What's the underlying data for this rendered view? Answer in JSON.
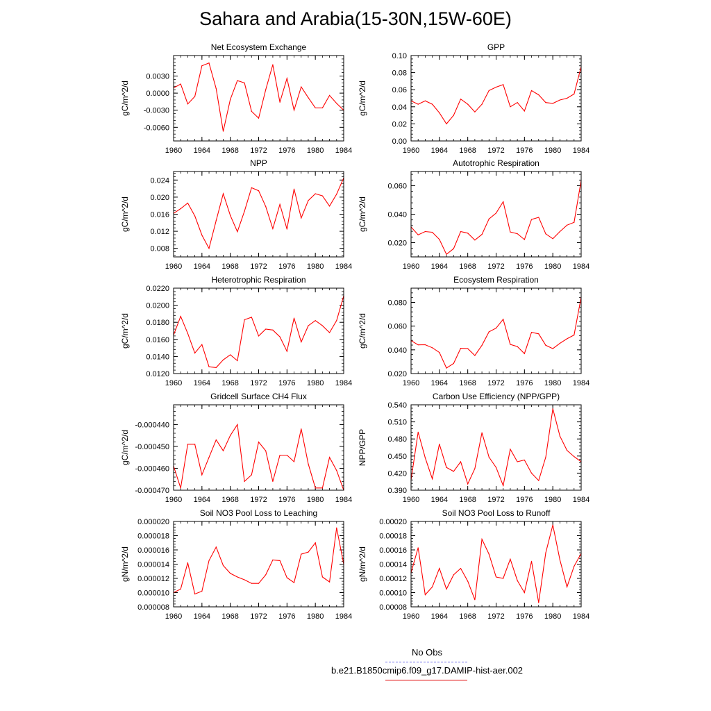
{
  "title": "Sahara and Arabia(15-30N,15W-60E)",
  "colors": {
    "series": "#ff0000",
    "obs": "#6a6ae8",
    "axis": "#000000"
  },
  "legend": {
    "obs_label": "No Obs",
    "model_label": "b.e21.B1850cmip6.f09_g17.DAMIP-hist-aer.002"
  },
  "chart_data": [
    {
      "type": "line",
      "title": "Net Ecosystem Exchange",
      "ylabel": "gC/m^2/d",
      "xlim": [
        1960,
        1984
      ],
      "xticks": [
        1960,
        1964,
        1968,
        1972,
        1976,
        1980,
        1984
      ],
      "ylim": [
        -0.0084,
        0.0066
      ],
      "yticks": [
        -0.006,
        -0.003,
        0.0,
        0.003
      ],
      "ytick_labels": [
        "-0.0060",
        "-0.0030",
        "0.0000",
        "0.0030"
      ],
      "x": [
        1960,
        1961,
        1962,
        1963,
        1964,
        1965,
        1966,
        1967,
        1968,
        1969,
        1970,
        1971,
        1972,
        1973,
        1974,
        1975,
        1976,
        1977,
        1978,
        1979,
        1980,
        1981,
        1982,
        1983,
        1984
      ],
      "values": [
        0.0009,
        0.0016,
        -0.0019,
        -0.0006,
        0.0048,
        0.0053,
        0.0008,
        -0.0067,
        -0.0011,
        0.0022,
        0.0018,
        -0.0032,
        -0.0044,
        0.0006,
        0.005,
        -0.0016,
        0.0026,
        -0.003,
        0.0011,
        -0.0008,
        -0.0026,
        -0.0026,
        -0.0004,
        -0.0018,
        -0.003
      ]
    },
    {
      "type": "line",
      "title": "GPP",
      "ylabel": "gC/m^2/d",
      "xlim": [
        1960,
        1984
      ],
      "xticks": [
        1960,
        1964,
        1968,
        1972,
        1976,
        1980,
        1984
      ],
      "ylim": [
        0.0,
        0.1
      ],
      "yticks": [
        0.0,
        0.02,
        0.04,
        0.06,
        0.08,
        0.1
      ],
      "ytick_labels": [
        "0.00",
        "0.02",
        "0.04",
        "0.06",
        "0.08",
        "0.10"
      ],
      "x": [
        1960,
        1961,
        1962,
        1963,
        1964,
        1965,
        1966,
        1967,
        1968,
        1969,
        1970,
        1971,
        1972,
        1973,
        1974,
        1975,
        1976,
        1977,
        1978,
        1979,
        1980,
        1981,
        1982,
        1983,
        1984
      ],
      "values": [
        0.047,
        0.043,
        0.047,
        0.043,
        0.033,
        0.02,
        0.03,
        0.049,
        0.043,
        0.034,
        0.043,
        0.059,
        0.063,
        0.066,
        0.04,
        0.045,
        0.035,
        0.059,
        0.054,
        0.045,
        0.044,
        0.048,
        0.05,
        0.055,
        0.087
      ]
    },
    {
      "type": "line",
      "title": "NPP",
      "ylabel": "gC/m^2/d",
      "xlim": [
        1960,
        1984
      ],
      "xticks": [
        1960,
        1964,
        1968,
        1972,
        1976,
        1980,
        1984
      ],
      "ylim": [
        0.006,
        0.026
      ],
      "yticks": [
        0.008,
        0.012,
        0.016,
        0.02,
        0.024
      ],
      "ytick_labels": [
        "0.008",
        "0.012",
        "0.016",
        "0.020",
        "0.024"
      ],
      "x": [
        1960,
        1961,
        1962,
        1963,
        1964,
        1965,
        1966,
        1967,
        1968,
        1969,
        1970,
        1971,
        1972,
        1973,
        1974,
        1975,
        1976,
        1977,
        1978,
        1979,
        1980,
        1981,
        1982,
        1983,
        1984
      ],
      "values": [
        0.0162,
        0.0173,
        0.0186,
        0.0156,
        0.0111,
        0.008,
        0.0145,
        0.0208,
        0.0157,
        0.0119,
        0.0167,
        0.0222,
        0.0215,
        0.0178,
        0.0126,
        0.0183,
        0.0125,
        0.0219,
        0.0151,
        0.0192,
        0.0208,
        0.0203,
        0.0179,
        0.0207,
        0.0245
      ]
    },
    {
      "type": "line",
      "title": "Autotrophic Respiration",
      "ylabel": "gC/m^2/d",
      "xlim": [
        1960,
        1984
      ],
      "xticks": [
        1960,
        1964,
        1968,
        1972,
        1976,
        1980,
        1984
      ],
      "ylim": [
        0.01,
        0.07
      ],
      "yticks": [
        0.02,
        0.04,
        0.06
      ],
      "ytick_labels": [
        "0.020",
        "0.040",
        "0.060"
      ],
      "x": [
        1960,
        1961,
        1962,
        1963,
        1964,
        1965,
        1966,
        1967,
        1968,
        1969,
        1970,
        1971,
        1972,
        1973,
        1974,
        1975,
        1976,
        1977,
        1978,
        1979,
        1980,
        1981,
        1982,
        1983,
        1984
      ],
      "values": [
        0.031,
        0.0255,
        0.0278,
        0.0273,
        0.0223,
        0.0118,
        0.0158,
        0.0278,
        0.0267,
        0.0218,
        0.0258,
        0.0367,
        0.0408,
        0.0488,
        0.0275,
        0.0263,
        0.0222,
        0.0363,
        0.0378,
        0.0262,
        0.0228,
        0.0278,
        0.0323,
        0.0343,
        0.0638
      ]
    },
    {
      "type": "line",
      "title": "Heterotrophic Respiration",
      "ylabel": "gC/m^2/d",
      "xlim": [
        1960,
        1984
      ],
      "xticks": [
        1960,
        1964,
        1968,
        1972,
        1976,
        1980,
        1984
      ],
      "ylim": [
        0.012,
        0.022
      ],
      "yticks": [
        0.012,
        0.014,
        0.016,
        0.018,
        0.02,
        0.022
      ],
      "ytick_labels": [
        "0.0120",
        "0.0140",
        "0.0160",
        "0.0180",
        "0.0200",
        "0.0220"
      ],
      "x": [
        1960,
        1961,
        1962,
        1963,
        1964,
        1965,
        1966,
        1967,
        1968,
        1969,
        1970,
        1971,
        1972,
        1973,
        1974,
        1975,
        1976,
        1977,
        1978,
        1979,
        1980,
        1981,
        1982,
        1983,
        1984
      ],
      "values": [
        0.0165,
        0.0187,
        0.0167,
        0.0144,
        0.0154,
        0.0128,
        0.0127,
        0.0136,
        0.0142,
        0.0135,
        0.0183,
        0.0186,
        0.0164,
        0.0172,
        0.0171,
        0.0163,
        0.0146,
        0.0185,
        0.0157,
        0.0176,
        0.0182,
        0.0176,
        0.0168,
        0.0182,
        0.0211
      ]
    },
    {
      "type": "line",
      "title": "Ecosystem Respiration",
      "ylabel": "gC/m^2/d",
      "xlim": [
        1960,
        1984
      ],
      "xticks": [
        1960,
        1964,
        1968,
        1972,
        1976,
        1980,
        1984
      ],
      "ylim": [
        0.02,
        0.092
      ],
      "yticks": [
        0.02,
        0.04,
        0.06,
        0.08
      ],
      "ytick_labels": [
        "0.020",
        "0.040",
        "0.060",
        "0.080"
      ],
      "x": [
        1960,
        1961,
        1962,
        1963,
        1964,
        1965,
        1966,
        1967,
        1968,
        1969,
        1970,
        1971,
        1972,
        1973,
        1974,
        1975,
        1976,
        1977,
        1978,
        1979,
        1980,
        1981,
        1982,
        1983,
        1984
      ],
      "values": [
        0.0478,
        0.0442,
        0.0443,
        0.0418,
        0.0378,
        0.0246,
        0.0285,
        0.0413,
        0.041,
        0.0352,
        0.0438,
        0.0552,
        0.0583,
        0.0658,
        0.0446,
        0.0428,
        0.0368,
        0.0548,
        0.0535,
        0.0438,
        0.041,
        0.0455,
        0.0493,
        0.0525,
        0.0845
      ]
    },
    {
      "type": "line",
      "title": "Gridcell Surface CH4 Flux",
      "ylabel": "gC/m^2/d",
      "xlim": [
        1960,
        1984
      ],
      "xticks": [
        1960,
        1964,
        1968,
        1972,
        1976,
        1980,
        1984
      ],
      "ylim": [
        -0.00047,
        -0.000431
      ],
      "yticks": [
        -0.00047,
        -0.00046,
        -0.00045,
        -0.00044
      ],
      "ytick_labels": [
        "-0.000470",
        "-0.000460",
        "-0.000450",
        "-0.000440"
      ],
      "x": [
        1960,
        1961,
        1962,
        1963,
        1964,
        1965,
        1966,
        1967,
        1968,
        1969,
        1970,
        1971,
        1972,
        1973,
        1974,
        1975,
        1976,
        1977,
        1978,
        1979,
        1980,
        1981,
        1982,
        1983,
        1984
      ],
      "values": [
        -0.000459,
        -0.000469,
        -0.000449,
        -0.000449,
        -0.000463,
        -0.000455,
        -0.000447,
        -0.000452,
        -0.000445,
        -0.00044,
        -0.000466,
        -0.000463,
        -0.000448,
        -0.000452,
        -0.000466,
        -0.000454,
        -0.000454,
        -0.000457,
        -0.000442,
        -0.000458,
        -0.000469,
        -0.000469,
        -0.000455,
        -0.000461,
        -0.00047
      ]
    },
    {
      "type": "line",
      "title": "Carbon Use Efficiency (NPP/GPP)",
      "ylabel": "NPP/GPP",
      "xlim": [
        1960,
        1984
      ],
      "xticks": [
        1960,
        1964,
        1968,
        1972,
        1976,
        1980,
        1984
      ],
      "ylim": [
        0.39,
        0.54
      ],
      "yticks": [
        0.39,
        0.42,
        0.45,
        0.48,
        0.51,
        0.54
      ],
      "ytick_labels": [
        "0.390",
        "0.420",
        "0.450",
        "0.480",
        "0.510",
        "0.540"
      ],
      "x": [
        1960,
        1961,
        1962,
        1963,
        1964,
        1965,
        1966,
        1967,
        1968,
        1969,
        1970,
        1971,
        1972,
        1973,
        1974,
        1975,
        1976,
        1977,
        1978,
        1979,
        1980,
        1981,
        1982,
        1983,
        1984
      ],
      "values": [
        0.408,
        0.492,
        0.447,
        0.41,
        0.471,
        0.43,
        0.423,
        0.44,
        0.401,
        0.428,
        0.491,
        0.448,
        0.43,
        0.398,
        0.462,
        0.44,
        0.443,
        0.42,
        0.407,
        0.448,
        0.533,
        0.485,
        0.46,
        0.449,
        0.44
      ]
    },
    {
      "type": "line",
      "title": "Soil NO3 Pool Loss to Leaching",
      "ylabel": "gN/m^2/d",
      "xlim": [
        1960,
        1984
      ],
      "xticks": [
        1960,
        1964,
        1968,
        1972,
        1976,
        1980,
        1984
      ],
      "ylim": [
        8e-06,
        2e-05
      ],
      "yticks": [
        8e-06,
        1e-05,
        1.2e-05,
        1.4e-05,
        1.6e-05,
        1.8e-05,
        2e-05
      ],
      "ytick_labels": [
        "0.000008",
        "0.000010",
        "0.000012",
        "0.000014",
        "0.000016",
        "0.000018",
        "0.000020"
      ],
      "x": [
        1960,
        1961,
        1962,
        1963,
        1964,
        1965,
        1966,
        1967,
        1968,
        1969,
        1970,
        1971,
        1972,
        1973,
        1974,
        1975,
        1976,
        1977,
        1978,
        1979,
        1980,
        1981,
        1982,
        1983,
        1984
      ],
      "values": [
        1e-05,
        1.05e-05,
        1.42e-05,
        9.8e-06,
        1.02e-05,
        1.45e-05,
        1.64e-05,
        1.38e-05,
        1.27e-05,
        1.22e-05,
        1.18e-05,
        1.13e-05,
        1.13e-05,
        1.25e-05,
        1.46e-05,
        1.45e-05,
        1.21e-05,
        1.14e-05,
        1.54e-05,
        1.57e-05,
        1.7e-05,
        1.22e-05,
        1.15e-05,
        1.91e-05,
        1.4e-05
      ]
    },
    {
      "type": "line",
      "title": "Soil NO3 Pool Loss to Runoff",
      "ylabel": "gN/m^2/d",
      "xlim": [
        1960,
        1984
      ],
      "xticks": [
        1960,
        1964,
        1968,
        1972,
        1976,
        1980,
        1984
      ],
      "ylim": [
        8e-05,
        0.0002
      ],
      "yticks": [
        8e-05,
        0.0001,
        0.00012,
        0.00014,
        0.00016,
        0.00018,
        0.0002
      ],
      "ytick_labels": [
        "0.00008",
        "0.00010",
        "0.00012",
        "0.00014",
        "0.00016",
        "0.00018",
        "0.00020"
      ],
      "x": [
        1960,
        1961,
        1962,
        1963,
        1964,
        1965,
        1966,
        1967,
        1968,
        1969,
        1970,
        1971,
        1972,
        1973,
        1974,
        1975,
        1976,
        1977,
        1978,
        1979,
        1980,
        1981,
        1982,
        1983,
        1984
      ],
      "values": [
        0.000128,
        0.000163,
        9.7e-05,
        0.000108,
        0.000134,
        0.000105,
        0.000125,
        0.000134,
        0.000116,
        9e-05,
        0.000175,
        0.000154,
        0.000122,
        0.00012,
        0.000147,
        0.000117,
        0.0001,
        0.000144,
        8.6e-05,
        0.000156,
        0.000195,
        0.000146,
        0.000108,
        0.000137,
        0.000155
      ]
    }
  ]
}
